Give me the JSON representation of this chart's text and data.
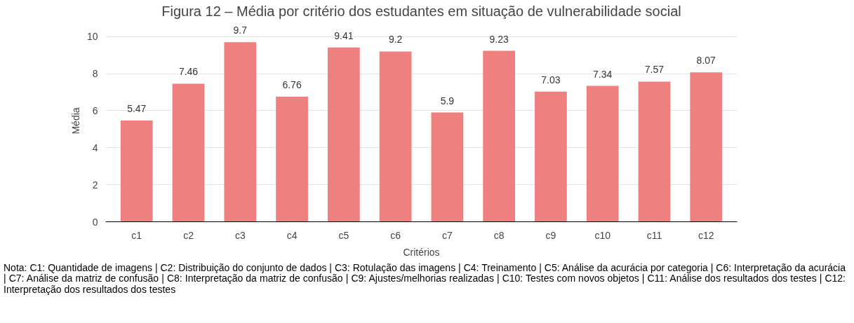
{
  "chart_data": {
    "type": "bar",
    "title": "Figura 12 – Média por critério dos estudantes em situação de vulnerabilidade social",
    "xlabel": "Critérios",
    "ylabel": "Média",
    "categories": [
      "c1",
      "c2",
      "c3",
      "c4",
      "c5",
      "c6",
      "c7",
      "c8",
      "c9",
      "c10",
      "c11",
      "c12"
    ],
    "values": [
      5.47,
      7.46,
      9.7,
      6.76,
      9.41,
      9.2,
      5.9,
      9.23,
      7.03,
      7.34,
      7.57,
      8.07
    ],
    "color": "#ef8080",
    "data_labels": true,
    "ylim": [
      0,
      10
    ],
    "yticks": [
      0,
      2,
      4,
      6,
      8,
      10
    ],
    "grid": "y",
    "annotations": [
      "Nota: C1: Quantidade de imagens | C2: Distribuição do conjunto de dados | C3: Rotulação das imagens | C4: Treinamento | C5: Análise da acurácia por categoria | C6: Interpretação da acurácia | C7: Análise da matriz de confusão | C8: Interpretação da matriz de confusão | C9: Ajustes/melhorias realizadas | C10: Testes com novos objetos | C11: Análise dos resultados dos testes | C12: Interpretação dos resultados dos testes"
    ]
  }
}
